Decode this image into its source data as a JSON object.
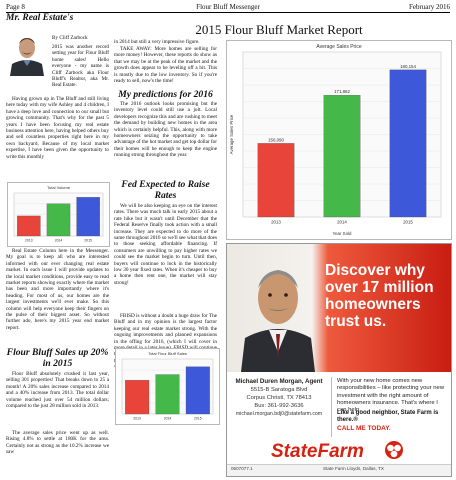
{
  "header": {
    "page": "Page 8",
    "publication": "Flour Bluff Messenger",
    "date": "February 2016",
    "column_title": "Mr. Real Estate's",
    "article_title": "2015 Flour Bluff Market Report"
  },
  "col1": {
    "byline": "By Cliff Zarbock",
    "intro": "2015 was another record setting year for Flour Bluff home sales! Hello everyone - my name is Cliff Zarbock aka Flour Bluff's Realtor, aka Mr. Real Estate.",
    "p2": "Having grown up in The Bluff and still living here today with my wife Ashley and 4 children, I have a deep love and connection to our small but growing community. That's why for the past 5 years I have been focusing my real estate business attention here, having helped others buy and sell countless properties right here in my own backyard. Because of my local market expertise, I have been given the opportunity to write this monthly",
    "p3": "Real Estate Column here in the Messenger. My goal is to keep all who are interested informed with our ever changing real estate market. In each issue I will provide updates to the local market conditions, provide easy to read market reports showing exactly where the market has been and more importantly where it's heading. For most of us, our homes are the largest investments we'll ever make. So this column will help everyone keep their fingers on the pulse of their biggest asset. So without further ado, here's my 2015 year end market report.",
    "h_sales": "Flour Bluff Sales up 20% in 2015",
    "p4": "Flour Bluff absolutely crushed it last year, selling 301 properties! That breaks down to 25 a month! A 20% sales increase compared to 2014 and a 40% increase from 2013. The total dollar volume reached just over 54 million dollars; compared to the just 28 million sold in 2013.",
    "p5": "The average sales price went up as well. Rising 4.8% to settle at 180K for the area. Certainly not as strong as the 10.2% increase we saw"
  },
  "col2": {
    "p1": "in 2014 but still a very impressive figure.",
    "p2": "TAKE AWAY: More homes are selling for more money! However, these reports do show as that we may be at the peak of the market and the growth does appear to be leveling off a bit. This is mostly due to the low inventory. So if you're ready to sell, now's the time!",
    "h_pred": "My predictions for 2016",
    "p3": "The 2016 outlook looks promising but the inventory level could still use a jolt. Local developers recognize this and are rushing to meet the demand by building new homes in the area which is certainly helpful. This, along with more homeowners seizing the opportunity to take advantage of the hot market and get top dollar for their homes will be enough to keep the engine running strong throughout the year.",
    "h_rates": "Fed Expected to Raise Rates",
    "p4": "We will be also keeping an eye on the interest rates. There was much talk in early 2015 about a rate hike but it wasn't until December that the Federal Reserve finally took action with a small increase. They are expected to do more of the same throughout 2016 so we'll see what that does to those seeking affordable financing. If consumers are unwilling to pay higher rates we could see the market begin to turn. Until then, buyers will continue to lock in the historically low 30 year fixed rates. When it's cheaper to buy a home then rent one, the market will stay strong!",
    "p5": "FBISD is without a doubt a huge draw for The Bluff and in my opinion is the largest factor keeping our real estate market strong. With the ongoing improvements and planned expansions in the offing for 2016, (which I will cover in more detail in a later issue), FBISD will continue to draw people in seeking a top tier education for their children. And where there is demand, prices will rise."
  },
  "ad": {
    "headline": "Discover why over 17 million homeowners trust us.",
    "agent_name": "Michael Duren Morgan, Agent",
    "address1": "5515-B Saratoga Blvd",
    "address2": "Corpus Christi, TX 78413",
    "phone": "Bus: 361-992-3636",
    "email": "michael.morgan.bdj0@statefarm.com",
    "body": "With your new home comes new responsibilities – like protecting your new investment with the right amount of homeowners insurance. That's where I can help.",
    "bold": "Like a good neighbor, State Farm is there.®",
    "cta": "CALL ME TODAY.",
    "logo": "StateFarm",
    "code": "0607077.1",
    "footer": "State Farm Lloyds, Dallas, TX",
    "colors": {
      "red": "#d62311"
    }
  },
  "chart_data": [
    {
      "type": "bar",
      "categories": [
        "2013",
        "2014",
        "2015"
      ],
      "values": [
        28000000,
        45000000,
        54000000
      ],
      "colors": [
        "#e8443a",
        "#44b94a",
        "#3d58d8"
      ],
      "title": "Total Volume",
      "ylim": [
        0,
        60000000
      ]
    },
    {
      "type": "bar",
      "categories": [
        "2013",
        "2014",
        "2015"
      ],
      "values": [
        156090,
        171862,
        180154
      ],
      "colors": [
        "#e8443a",
        "#44b94a",
        "#3d58d8"
      ],
      "title": "Average Sales Price",
      "xlabel": "Year Sold",
      "ylabel": "Average Sales Price",
      "ylim": [
        132000,
        186000
      ]
    },
    {
      "type": "bar",
      "categories": [
        "2013",
        "2014",
        "2015"
      ],
      "values": [
        215,
        251,
        301
      ],
      "colors": [
        "#e8443a",
        "#44b94a",
        "#3d58d8"
      ],
      "title": "Total Flour Bluff Sales",
      "ylim": [
        0,
        350
      ]
    }
  ]
}
